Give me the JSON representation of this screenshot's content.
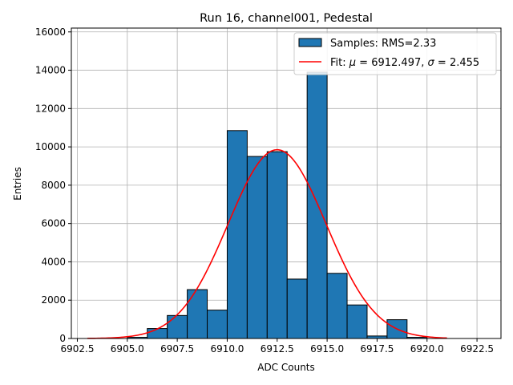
{
  "chart_data": {
    "type": "bar",
    "title": "Run 16, channel001, Pedestal",
    "xlabel": "ADC Counts",
    "ylabel": "Entries",
    "xlim": [
      6902.2,
      6923.7
    ],
    "ylim": [
      0,
      16200
    ],
    "grid": true,
    "legend_position": "top-right",
    "x_ticks": [
      6902.5,
      6905.0,
      6907.5,
      6910.0,
      6912.5,
      6915.0,
      6917.5,
      6920.0,
      6922.5
    ],
    "x_tick_labels": [
      "6902.5",
      "6905.0",
      "6907.5",
      "6910.0",
      "6912.5",
      "6915.0",
      "6917.5",
      "6920.0",
      "6922.5"
    ],
    "y_ticks": [
      0,
      2000,
      4000,
      6000,
      8000,
      10000,
      12000,
      14000,
      16000
    ],
    "y_tick_labels": [
      "0",
      "2000",
      "4000",
      "6000",
      "8000",
      "10000",
      "12000",
      "14000",
      "16000"
    ],
    "histogram": {
      "name": "Samples: RMS=2.33",
      "color": "#1f77b4",
      "edge_color": "#000000",
      "bins": [
        {
          "x0": 6905.0,
          "x1": 6906.0,
          "count": 60
        },
        {
          "x0": 6906.0,
          "x1": 6907.0,
          "count": 520
        },
        {
          "x0": 6907.0,
          "x1": 6908.0,
          "count": 1200
        },
        {
          "x0": 6908.0,
          "x1": 6909.0,
          "count": 2550
        },
        {
          "x0": 6909.0,
          "x1": 6910.0,
          "count": 1480
        },
        {
          "x0": 6910.0,
          "x1": 6911.0,
          "count": 10850
        },
        {
          "x0": 6911.0,
          "x1": 6912.0,
          "count": 9500
        },
        {
          "x0": 6912.0,
          "x1": 6913.0,
          "count": 9750
        },
        {
          "x0": 6913.0,
          "x1": 6914.0,
          "count": 3100
        },
        {
          "x0": 6914.0,
          "x1": 6915.0,
          "count": 13900
        },
        {
          "x0": 6915.0,
          "x1": 6916.0,
          "count": 3400
        },
        {
          "x0": 6916.0,
          "x1": 6917.0,
          "count": 1750
        },
        {
          "x0": 6917.0,
          "x1": 6918.0,
          "count": 130
        },
        {
          "x0": 6918.0,
          "x1": 6919.0,
          "count": 980
        },
        {
          "x0": 6919.0,
          "x1": 6920.0,
          "count": 60
        }
      ]
    },
    "fit": {
      "name_prefix": "Fit: ",
      "mu_symbol": "μ",
      "sigma_symbol": "σ",
      "mu_value": "6912.497",
      "sigma_value": "2.455",
      "mu": 6912.497,
      "sigma": 2.455,
      "peak": 9850,
      "x_range": [
        6903.0,
        6921.0
      ],
      "color": "#ff0000"
    }
  }
}
